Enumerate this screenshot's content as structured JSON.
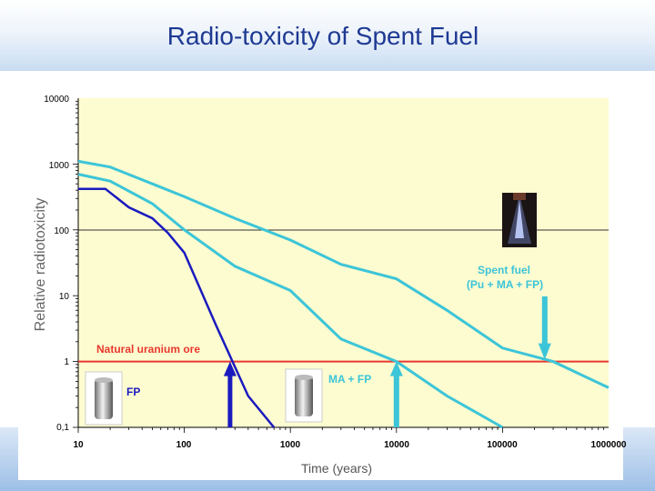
{
  "page": {
    "title": "Radio-toxicity of Spent Fuel"
  },
  "chart_data": {
    "type": "line",
    "xlabel": "Time (years)",
    "ylabel": "Relative radiotoxicity",
    "xscale": "log",
    "yscale": "log",
    "xlim": [
      10,
      1000000
    ],
    "ylim": [
      0.1,
      10000
    ],
    "x_tick_labels": [
      "10",
      "100",
      "1000",
      "10000",
      "100000",
      "1000000"
    ],
    "y_tick_labels": [
      "10000",
      "1000",
      "100",
      "10",
      "1",
      "0,1"
    ],
    "grid": "horizontal at decades 100 and 1",
    "background_color": "#fdfbd0",
    "series": [
      {
        "name": "Spent fuel\n(Pu + MA + FP)",
        "color": "#3cc5d8",
        "points": [
          [
            10,
            1100
          ],
          [
            20,
            900
          ],
          [
            50,
            500
          ],
          [
            100,
            320
          ],
          [
            300,
            150
          ],
          [
            1000,
            70
          ],
          [
            3000,
            30
          ],
          [
            10000,
            18
          ],
          [
            30000,
            6
          ],
          [
            100000,
            1.6
          ],
          [
            300000,
            1.0
          ],
          [
            1000000,
            0.4
          ]
        ]
      },
      {
        "name": "MA + FP",
        "color": "#3cc5d8",
        "points": [
          [
            10,
            700
          ],
          [
            20,
            550
          ],
          [
            50,
            250
          ],
          [
            100,
            100
          ],
          [
            300,
            28
          ],
          [
            1000,
            12
          ],
          [
            3000,
            2.2
          ],
          [
            10000,
            1.0
          ],
          [
            30000,
            0.3
          ],
          [
            100000,
            0.08
          ]
        ]
      },
      {
        "name": "FP",
        "color": "#1a1abf",
        "points": [
          [
            10,
            420
          ],
          [
            18,
            420
          ],
          [
            30,
            220
          ],
          [
            50,
            150
          ],
          [
            70,
            90
          ],
          [
            100,
            45
          ],
          [
            200,
            3.5
          ],
          [
            400,
            0.3
          ],
          [
            700,
            0.08
          ]
        ]
      }
    ],
    "reference_line": {
      "label": "Natural uranium ore",
      "y": 1,
      "color": "#e8392e"
    },
    "arrows": [
      {
        "target": "FP",
        "x": 270,
        "color": "#1a1abf"
      },
      {
        "target": "MA + FP",
        "x": 10000,
        "color": "#3cc5d8"
      },
      {
        "target": "Spent fuel",
        "x": 250000,
        "color": "#3cc5d8"
      }
    ],
    "annotations": [
      {
        "text": "Spent fuel",
        "color": "#3cc5d8"
      },
      {
        "text": "(Pu + MA + FP)",
        "color": "#3cc5d8"
      },
      {
        "text": "MA + FP",
        "color": "#3cc5d8"
      },
      {
        "text": "FP",
        "color": "#1a1abf"
      },
      {
        "text": "Natural uranium ore",
        "color": "#e8392e"
      }
    ]
  }
}
